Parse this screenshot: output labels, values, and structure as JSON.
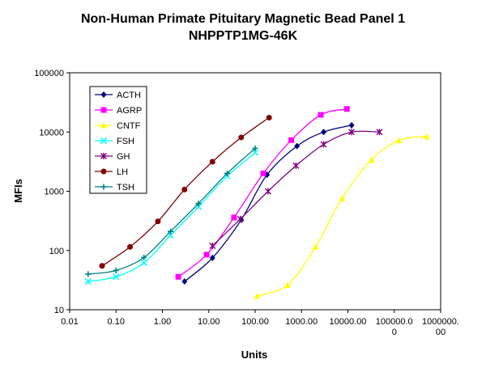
{
  "chart_data": {
    "type": "line",
    "title": "Non-Human Primate Pituitary Magnetic Bead Panel 1",
    "subtitle": "NHPPTP1MG-46K",
    "xlabel": "Units",
    "ylabel": "MFIs",
    "x_scale": "log",
    "y_scale": "log",
    "xlim": [
      0.01,
      1000000
    ],
    "ylim": [
      10,
      100000
    ],
    "x_tick_labels": [
      [
        "0.01"
      ],
      [
        "0.10"
      ],
      [
        "1.00"
      ],
      [
        "10.00"
      ],
      [
        "100.00"
      ],
      [
        "1000.00"
      ],
      [
        "10000.00"
      ],
      [
        "100000.0",
        "0"
      ],
      [
        "1000000.",
        "00"
      ]
    ],
    "y_tick_labels": [
      "10",
      "100",
      "1000",
      "10000",
      "100000"
    ],
    "grid": false,
    "legend_position": "top-left",
    "series": [
      {
        "name": "ACTH",
        "color": "#000080",
        "marker": "diamond",
        "x": [
          3,
          12,
          50,
          180,
          800,
          3000,
          12000
        ],
        "y": [
          30,
          75,
          330,
          1900,
          5800,
          10000,
          13000
        ]
      },
      {
        "name": "AGRP",
        "color": "#ff00ff",
        "marker": "square",
        "x": [
          2.2,
          9,
          35,
          150,
          600,
          2600,
          9500
        ],
        "y": [
          36,
          85,
          360,
          2000,
          7300,
          19500,
          24500
        ]
      },
      {
        "name": "CNTF",
        "color": "#ffff00",
        "marker": "triangle",
        "x": [
          110,
          500,
          2000,
          7500,
          32000,
          125000,
          500000
        ],
        "y": [
          17,
          26,
          115,
          760,
          3400,
          7200,
          8400
        ]
      },
      {
        "name": "FSH",
        "color": "#00ffff",
        "marker": "x",
        "x": [
          0.025,
          0.1,
          0.4,
          1.5,
          6,
          25,
          100
        ],
        "y": [
          30,
          36,
          62,
          180,
          550,
          1800,
          4500
        ]
      },
      {
        "name": "GH",
        "color": "#800080",
        "marker": "star",
        "x": [
          12,
          48,
          190,
          760,
          3000,
          12000,
          48000
        ],
        "y": [
          120,
          340,
          1000,
          2700,
          6200,
          10000,
          10000
        ]
      },
      {
        "name": "LH",
        "color": "#800000",
        "marker": "circle",
        "x": [
          0.05,
          0.2,
          0.8,
          3,
          12,
          50,
          200
        ],
        "y": [
          55,
          115,
          310,
          1070,
          3150,
          8100,
          17500
        ]
      },
      {
        "name": "TSH",
        "color": "#008080",
        "marker": "plus",
        "x": [
          0.025,
          0.1,
          0.4,
          1.5,
          6,
          25,
          100
        ],
        "y": [
          40,
          46,
          76,
          210,
          620,
          2000,
          5300
        ]
      }
    ]
  }
}
